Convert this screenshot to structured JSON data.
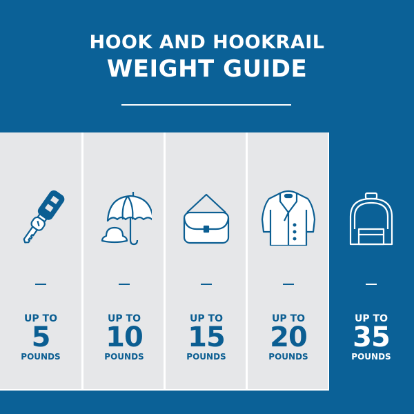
{
  "title": {
    "line1": "HOOK AND HOOKRAIL",
    "line2": "WEIGHT GUIDE"
  },
  "colors": {
    "background": "#0b6197",
    "panel": "#e6e7e9",
    "text_dark": "#0b5e92",
    "text_light": "#ffffff"
  },
  "items": [
    {
      "icon": "car-key-icon",
      "prefix": "UP TO",
      "value": "5",
      "unit": "POUNDS"
    },
    {
      "icon": "umbrella-hat-icon",
      "prefix": "UP TO",
      "value": "10",
      "unit": "POUNDS"
    },
    {
      "icon": "handbag-icon",
      "prefix": "UP TO",
      "value": "15",
      "unit": "POUNDS"
    },
    {
      "icon": "coat-icon",
      "prefix": "UP TO",
      "value": "20",
      "unit": "POUNDS"
    },
    {
      "icon": "backpack-icon",
      "prefix": "UP TO",
      "value": "35",
      "unit": "POUNDS",
      "highlighted": true
    }
  ]
}
